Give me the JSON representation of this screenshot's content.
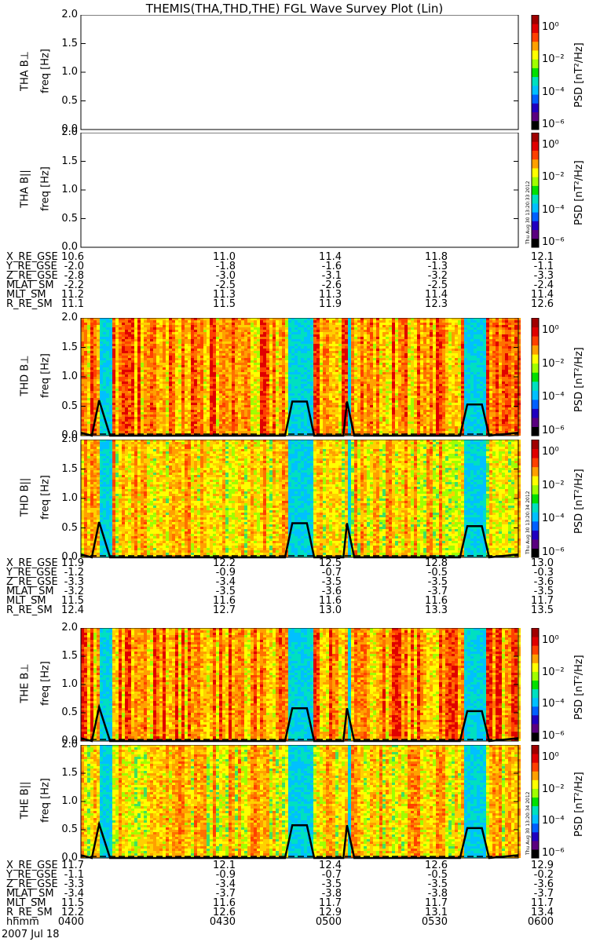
{
  "title": "THEMIS(THA,THD,THE) FGL Wave Survey Plot (Lin)",
  "timestamp": "Thu Aug 30 13:20:33 2012",
  "timestamp2": "Thu Aug 30 13:20:34 2012",
  "freq_ticks": [
    "0.0",
    "0.5",
    "1.0",
    "1.5",
    "2.0"
  ],
  "colorbar": {
    "label": "PSD [nT²/Hz]",
    "ticks": [
      "10⁰",
      "10⁻²",
      "10⁻⁴",
      "10⁻⁶"
    ],
    "colors": [
      "#000000",
      "#5a0080",
      "#2000c0",
      "#0060ff",
      "#00c0ff",
      "#00e0c0",
      "#00e000",
      "#a0ff00",
      "#ffff00",
      "#ffa000",
      "#ff4000",
      "#e00000",
      "#a00000"
    ]
  },
  "panels": [
    {
      "ylabel": "THA B⊥",
      "unit": "freq [Hz]",
      "spectrogram": false
    },
    {
      "ylabel": "THA B||",
      "unit": "freq [Hz]",
      "spectrogram": false
    },
    {
      "ylabel": "THD B⊥",
      "unit": "freq [Hz]",
      "spectrogram": true
    },
    {
      "ylabel": "THD B||",
      "unit": "freq [Hz]",
      "spectrogram": true
    },
    {
      "ylabel": "THE B⊥",
      "unit": "freq [Hz]",
      "spectrogram": true
    },
    {
      "ylabel": "THE B||",
      "unit": "freq [Hz]",
      "spectrogram": true
    }
  ],
  "ephemeris": [
    {
      "rows": [
        {
          "name": "X_RE_GSE",
          "values": [
            "10.6",
            "11.0",
            "11.4",
            "11.8",
            "12.1"
          ]
        },
        {
          "name": "Y_RE_GSE",
          "values": [
            "-2.0",
            "-1.8",
            "-1.6",
            "-1.3",
            "-1.1"
          ]
        },
        {
          "name": "Z_RE_GSE",
          "values": [
            "-2.8",
            "-3.0",
            "-3.1",
            "-3.2",
            "-3.3"
          ]
        },
        {
          "name": "MLAT_SM",
          "values": [
            "-2.2",
            "-2.5",
            "-2.6",
            "-2.5",
            "-2.4"
          ]
        },
        {
          "name": "MLT_SM",
          "values": [
            "11.2",
            "11.3",
            "11.3",
            "11.4",
            "11.4"
          ]
        },
        {
          "name": "R_RE_SM",
          "values": [
            "11.1",
            "11.5",
            "11.9",
            "12.3",
            "12.6"
          ]
        }
      ]
    },
    {
      "rows": [
        {
          "name": "X_RE_GSE",
          "values": [
            "11.9",
            "12.2",
            "12.5",
            "12.8",
            "13.0"
          ]
        },
        {
          "name": "Y_RE_GSE",
          "values": [
            "-1.2",
            "-0.9",
            "-0.7",
            "-0.5",
            "-0.3"
          ]
        },
        {
          "name": "Z_RE_GSE",
          "values": [
            "-3.3",
            "-3.4",
            "-3.5",
            "-3.5",
            "-3.6"
          ]
        },
        {
          "name": "MLAT_SM",
          "values": [
            "-3.2",
            "-3.5",
            "-3.6",
            "-3.7",
            "-3.5"
          ]
        },
        {
          "name": "MLT_SM",
          "values": [
            "11.5",
            "11.6",
            "11.6",
            "11.6",
            "11.7"
          ]
        },
        {
          "name": "R_RE_SM",
          "values": [
            "12.4",
            "12.7",
            "13.0",
            "13.3",
            "13.5"
          ]
        }
      ]
    },
    {
      "rows": [
        {
          "name": "X_RE_GSE",
          "values": [
            "11.7",
            "12.1",
            "12.4",
            "12.6",
            "12.9"
          ]
        },
        {
          "name": "Y_RE_GSE",
          "values": [
            "-1.1",
            "-0.9",
            "-0.7",
            "-0.5",
            "-0.2"
          ]
        },
        {
          "name": "Z_RE_GSE",
          "values": [
            "-3.3",
            "-3.4",
            "-3.5",
            "-3.5",
            "-3.6"
          ]
        },
        {
          "name": "MLAT_SM",
          "values": [
            "-3.4",
            "-3.7",
            "-3.8",
            "-3.8",
            "-3.7"
          ]
        },
        {
          "name": "MLT_SM",
          "values": [
            "11.5",
            "11.6",
            "11.7",
            "11.7",
            "11.7"
          ]
        },
        {
          "name": "R_RE_SM",
          "values": [
            "12.2",
            "12.6",
            "12.9",
            "13.1",
            "13.4"
          ]
        },
        {
          "name": "hhmm",
          "values": [
            "0400",
            "0430",
            "0500",
            "0530",
            "0600"
          ]
        }
      ]
    }
  ],
  "date": "2007 Jul 18",
  "chart_data": {
    "type": "heatmap",
    "title": "THEMIS(THA,THD,THE) FGL Wave Survey Plot (Lin)",
    "xlabel": "hhmm",
    "x_ticks": [
      "0400",
      "0430",
      "0500",
      "0530",
      "0600"
    ],
    "xlim": [
      "0400",
      "0600"
    ],
    "ylabel": "freq [Hz]",
    "ylim": [
      0,
      2.0
    ],
    "colorbar_label": "PSD [nT²/Hz]",
    "colorbar_range": [
      1e-07,
      10.0
    ],
    "colorbar_scale": "log",
    "low_power_bands_hhmm": [
      [
        "0405",
        "0408"
      ],
      [
        "0457",
        "0503"
      ],
      [
        "0513",
        "0514"
      ],
      [
        "0545",
        "0551"
      ]
    ],
    "spectral_peak_curve_hz": [
      {
        "time": "0403",
        "freq": 0.0
      },
      {
        "time": "0405",
        "freq": 0.6
      },
      {
        "time": "0408",
        "freq": 0.0
      },
      {
        "time": "0456",
        "freq": 0.0
      },
      {
        "time": "0458",
        "freq": 0.58
      },
      {
        "time": "0502",
        "freq": 0.58
      },
      {
        "time": "0504",
        "freq": 0.0
      },
      {
        "time": "0512",
        "freq": 0.0
      },
      {
        "time": "0513",
        "freq": 0.58
      },
      {
        "time": "0515",
        "freq": 0.0
      },
      {
        "time": "0544",
        "freq": 0.0
      },
      {
        "time": "0546",
        "freq": 0.53
      },
      {
        "time": "0550",
        "freq": 0.53
      },
      {
        "time": "0552",
        "freq": 0.0
      }
    ],
    "series": [
      {
        "name": "THA B⊥",
        "values": []
      },
      {
        "name": "THA B||",
        "values": []
      },
      {
        "name": "THD B⊥",
        "values": []
      },
      {
        "name": "THD B||",
        "values": []
      },
      {
        "name": "THE B⊥",
        "values": []
      },
      {
        "name": "THE B||",
        "values": []
      }
    ]
  }
}
